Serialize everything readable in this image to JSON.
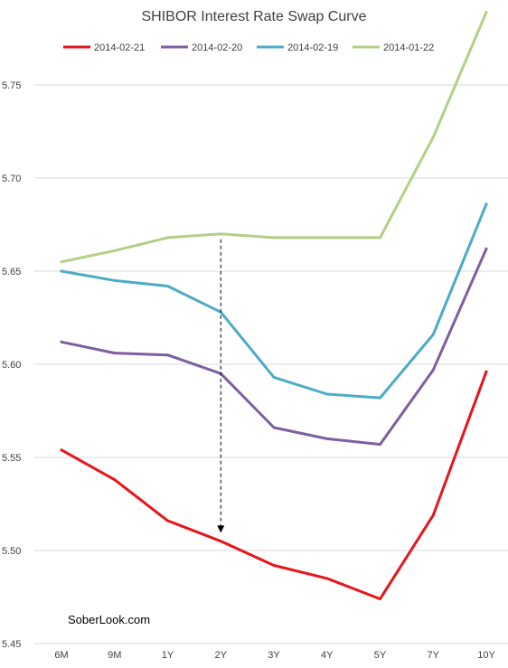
{
  "chart_data": {
    "type": "line",
    "title": "SHIBOR Interest Rate Swap Curve",
    "xlabel": "",
    "ylabel": "",
    "categories": [
      "6M",
      "9M",
      "1Y",
      "2Y",
      "3Y",
      "4Y",
      "5Y",
      "7Y",
      "10Y"
    ],
    "ylim": [
      5.45,
      5.79
    ],
    "yticks": [
      5.45,
      5.5,
      5.55,
      5.6,
      5.65,
      5.7,
      5.75
    ],
    "ytick_labels": [
      "5.45",
      "5.50",
      "5.55",
      "5.60",
      "5.65",
      "5.70",
      "5.75"
    ],
    "grid": true,
    "legend_position": "top",
    "series": [
      {
        "name": "2014-02-21",
        "color": "#e8141b",
        "values": [
          5.554,
          5.538,
          5.516,
          5.505,
          5.492,
          5.485,
          5.474,
          5.519,
          5.596
        ]
      },
      {
        "name": "2014-02-20",
        "color": "#7d5fa0",
        "values": [
          5.612,
          5.606,
          5.605,
          5.595,
          5.566,
          5.56,
          5.557,
          5.597,
          5.662
        ]
      },
      {
        "name": "2014-02-19",
        "color": "#4bacc6",
        "values": [
          5.65,
          5.645,
          5.642,
          5.628,
          5.593,
          5.584,
          5.582,
          5.616,
          5.686
        ]
      },
      {
        "name": "2014-01-22",
        "color": "#b2cf85",
        "values": [
          5.655,
          5.661,
          5.668,
          5.67,
          5.668,
          5.668,
          5.668,
          5.722,
          5.789
        ]
      }
    ],
    "annotations": [
      {
        "type": "dashed-arrow",
        "category": "2Y",
        "from_value": 5.67,
        "to_value": 5.51
      }
    ]
  },
  "watermark": "SoberLook.com"
}
